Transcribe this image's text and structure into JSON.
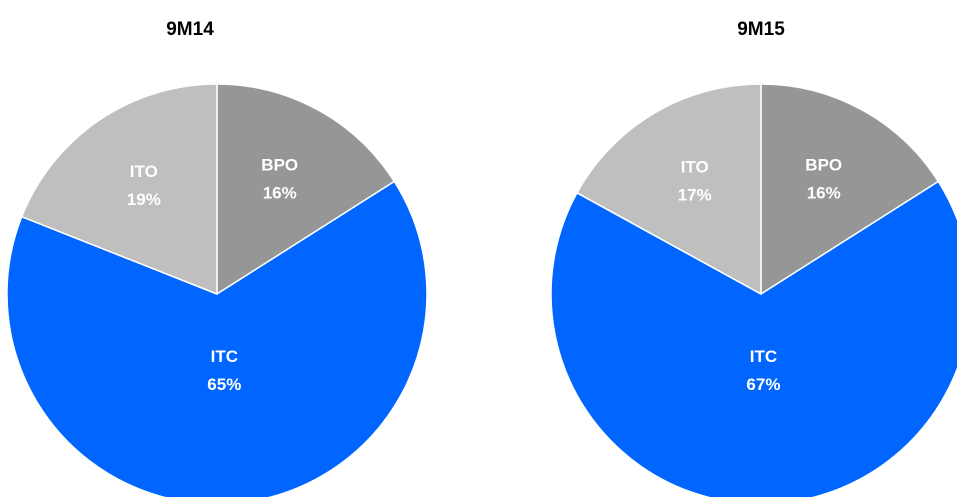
{
  "chart_data": [
    {
      "type": "pie",
      "title": "9M14",
      "categories": [
        "BPO",
        "ITC",
        "ITO"
      ],
      "values": [
        16,
        65,
        19
      ],
      "value_labels": [
        "16%",
        "65%",
        "19%"
      ],
      "colors": [
        "#969696",
        "#0066ff",
        "#bfbfbf"
      ]
    },
    {
      "type": "pie",
      "title": "9M15",
      "categories": [
        "BPO",
        "ITC",
        "ITO"
      ],
      "values": [
        16,
        67,
        17
      ],
      "value_labels": [
        "16%",
        "67%",
        "17%"
      ],
      "colors": [
        "#969696",
        "#0066ff",
        "#bfbfbf"
      ]
    }
  ]
}
